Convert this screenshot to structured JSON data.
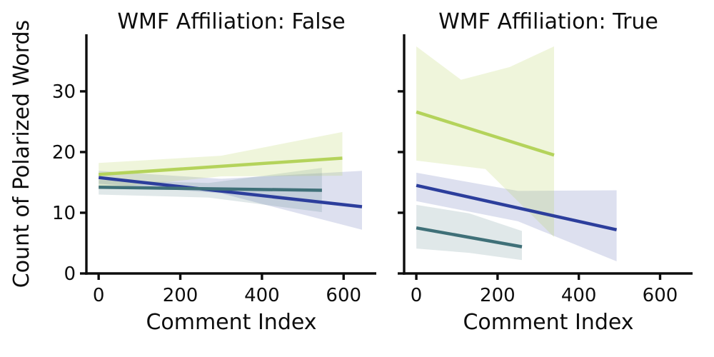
{
  "figure": {
    "background": "#ffffff",
    "text_color": "#0d0d0d",
    "axis_color": "#0d0d0d"
  },
  "chart_data": [
    {
      "type": "line",
      "title": "WMF Affiliation: False",
      "xlabel": "Comment Index",
      "ylabel": "Count of Polarized Words",
      "xlim": [
        -30,
        680
      ],
      "ylim": [
        0,
        39.4
      ],
      "xticks": [
        0,
        200,
        400,
        600
      ],
      "yticks": [
        0,
        10,
        20,
        30
      ],
      "show_ytick_labels": true,
      "grid": false,
      "legend": "none",
      "series": [
        {
          "name": "hue-blue",
          "color": "#2c3e9c",
          "band_opacity": 0.16,
          "line": [
            [
              0,
              15.8
            ],
            [
              645,
              11.0
            ]
          ],
          "band_upper": [
            [
              0,
              16.9
            ],
            [
              300,
              15.6
            ],
            [
              645,
              16.9
            ]
          ],
          "band_lower": [
            [
              0,
              14.8
            ],
            [
              300,
              13.2
            ],
            [
              645,
              7.2
            ]
          ]
        },
        {
          "name": "hue-teal",
          "color": "#3f7078",
          "band_opacity": 0.16,
          "line": [
            [
              0,
              14.2
            ],
            [
              547,
              13.7
            ]
          ],
          "band_upper": [
            [
              0,
              15.4
            ],
            [
              270,
              14.9
            ],
            [
              547,
              17.4
            ]
          ],
          "band_lower": [
            [
              0,
              13.0
            ],
            [
              270,
              12.5
            ],
            [
              547,
              10.1
            ]
          ]
        },
        {
          "name": "hue-yellowgreen",
          "color": "#b4d35b",
          "band_opacity": 0.22,
          "line": [
            [
              0,
              16.3
            ],
            [
              597,
              19.0
            ]
          ],
          "band_upper": [
            [
              0,
              18.2
            ],
            [
              300,
              19.4
            ],
            [
              597,
              23.3
            ]
          ],
          "band_lower": [
            [
              0,
              13.9
            ],
            [
              300,
              16.0
            ],
            [
              597,
              16.1
            ]
          ]
        }
      ]
    },
    {
      "type": "line",
      "title": "WMF Affiliation: True",
      "xlabel": "Comment Index",
      "ylabel": "",
      "xlim": [
        -30,
        680
      ],
      "ylim": [
        0,
        39.4
      ],
      "xticks": [
        0,
        200,
        400,
        600
      ],
      "yticks": [
        0,
        10,
        20,
        30
      ],
      "show_ytick_labels": false,
      "grid": false,
      "legend": "none",
      "series": [
        {
          "name": "hue-blue",
          "color": "#2c3e9c",
          "band_opacity": 0.16,
          "line": [
            [
              0,
              14.5
            ],
            [
              493,
              7.2
            ]
          ],
          "band_upper": [
            [
              0,
              16.6
            ],
            [
              250,
              13.6
            ],
            [
              493,
              13.7
            ]
          ],
          "band_lower": [
            [
              0,
              11.9
            ],
            [
              250,
              8.6
            ],
            [
              493,
              2.0
            ]
          ]
        },
        {
          "name": "hue-teal",
          "color": "#3f7078",
          "band_opacity": 0.16,
          "line": [
            [
              0,
              7.5
            ],
            [
              260,
              4.4
            ]
          ],
          "band_upper": [
            [
              0,
              11.3
            ],
            [
              130,
              9.9
            ],
            [
              260,
              7.0
            ]
          ],
          "band_lower": [
            [
              0,
              4.1
            ],
            [
              130,
              3.4
            ],
            [
              260,
              2.2
            ]
          ]
        },
        {
          "name": "hue-yellowgreen",
          "color": "#b4d35b",
          "band_opacity": 0.22,
          "line": [
            [
              0,
              26.6
            ],
            [
              339,
              19.5
            ]
          ],
          "band_upper": [
            [
              0,
              37.4
            ],
            [
              110,
              31.9
            ],
            [
              230,
              34.0
            ],
            [
              339,
              37.4
            ]
          ],
          "band_lower": [
            [
              0,
              18.6
            ],
            [
              170,
              17.2
            ],
            [
              339,
              6.0
            ]
          ]
        }
      ]
    }
  ]
}
